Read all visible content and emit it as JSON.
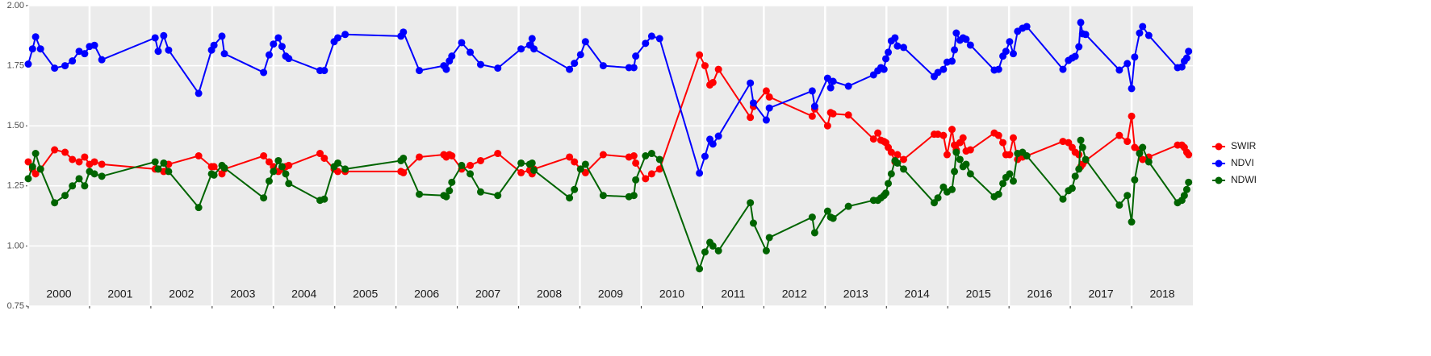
{
  "chart_data": {
    "type": "line",
    "x": [
      2000.0,
      2000.07,
      2000.12,
      2000.2,
      2000.43,
      2000.6,
      2000.72,
      2000.83,
      2000.92,
      2001.0,
      2001.08,
      2001.2,
      2002.07,
      2002.12,
      2002.21,
      2002.29,
      2002.78,
      2002.99,
      2003.03,
      2003.16,
      2003.2,
      2003.84,
      2003.93,
      2004.0,
      2004.08,
      2004.14,
      2004.2,
      2004.25,
      2004.76,
      2004.83,
      2004.99,
      2005.05,
      2005.17,
      2006.08,
      2006.12,
      2006.38,
      2006.78,
      2006.82,
      2006.87,
      2006.91,
      2007.07,
      2007.21,
      2007.38,
      2007.66,
      2008.04,
      2008.18,
      2008.22,
      2008.25,
      2008.83,
      2008.91,
      2009.01,
      2009.09,
      2009.38,
      2009.8,
      2009.88,
      2009.91,
      2010.07,
      2010.17,
      2010.3,
      2010.95,
      2011.04,
      2011.12,
      2011.17,
      2011.26,
      2011.78,
      2011.83,
      2012.04,
      2012.09,
      2012.79,
      2012.83,
      2013.04,
      2013.09,
      2013.13,
      2013.38,
      2013.79,
      2013.86,
      2013.91,
      2013.96,
      2013.99,
      2014.03,
      2014.08,
      2014.14,
      2014.18,
      2014.28,
      2014.78,
      2014.84,
      2014.93,
      2014.99,
      2015.07,
      2015.11,
      2015.14,
      2015.2,
      2015.25,
      2015.3,
      2015.37,
      2015.76,
      2015.83,
      2015.9,
      2015.95,
      2016.01,
      2016.07,
      2016.14,
      2016.22,
      2016.29,
      2016.88,
      2016.97,
      2017.03,
      2017.08,
      2017.14,
      2017.17,
      2017.2,
      2017.25,
      2017.8,
      2017.93,
      2018.0,
      2018.05,
      2018.13,
      2018.18,
      2018.28,
      2018.75,
      2018.82,
      2018.86,
      2018.9,
      2018.93
    ],
    "series": [
      {
        "name": "SWIR",
        "color": "#ff0000",
        "values": [
          1.35,
          1.32,
          1.3,
          1.32,
          1.4,
          1.39,
          1.36,
          1.35,
          1.37,
          1.34,
          1.35,
          1.34,
          1.32,
          1.32,
          1.31,
          1.34,
          1.375,
          1.33,
          1.33,
          1.3,
          1.32,
          1.375,
          1.35,
          1.33,
          1.31,
          1.32,
          1.33,
          1.335,
          1.385,
          1.365,
          1.32,
          1.31,
          1.31,
          1.31,
          1.305,
          1.37,
          1.38,
          1.37,
          1.38,
          1.375,
          1.32,
          1.335,
          1.355,
          1.385,
          1.305,
          1.315,
          1.3,
          1.32,
          1.37,
          1.35,
          1.32,
          1.305,
          1.38,
          1.37,
          1.375,
          1.345,
          1.28,
          1.3,
          1.32,
          1.795,
          1.75,
          1.67,
          1.68,
          1.735,
          1.535,
          1.58,
          1.645,
          1.62,
          1.54,
          1.57,
          1.5,
          1.555,
          1.55,
          1.545,
          1.445,
          1.47,
          1.44,
          1.435,
          1.43,
          1.41,
          1.39,
          1.35,
          1.38,
          1.36,
          1.465,
          1.465,
          1.46,
          1.38,
          1.485,
          1.42,
          1.4,
          1.43,
          1.45,
          1.395,
          1.4,
          1.47,
          1.46,
          1.43,
          1.38,
          1.38,
          1.45,
          1.36,
          1.37,
          1.375,
          1.435,
          1.43,
          1.41,
          1.39,
          1.38,
          1.33,
          1.34,
          1.355,
          1.46,
          1.435,
          1.54,
          1.41,
          1.4,
          1.36,
          1.37,
          1.42,
          1.42,
          1.41,
          1.39,
          1.38
        ]
      },
      {
        "name": "NDVI",
        "color": "#0000ff",
        "values": [
          1.757,
          1.82,
          1.87,
          1.82,
          1.74,
          1.75,
          1.77,
          1.81,
          1.8,
          1.83,
          1.835,
          1.775,
          1.866,
          1.81,
          1.875,
          1.815,
          1.635,
          1.815,
          1.835,
          1.873,
          1.8,
          1.722,
          1.795,
          1.84,
          1.866,
          1.83,
          1.79,
          1.78,
          1.73,
          1.73,
          1.85,
          1.866,
          1.88,
          1.873,
          1.89,
          1.73,
          1.75,
          1.735,
          1.77,
          1.79,
          1.846,
          1.806,
          1.755,
          1.74,
          1.82,
          1.836,
          1.863,
          1.82,
          1.735,
          1.76,
          1.796,
          1.85,
          1.75,
          1.742,
          1.742,
          1.79,
          1.843,
          1.873,
          1.863,
          1.303,
          1.373,
          1.444,
          1.424,
          1.457,
          1.678,
          1.595,
          1.524,
          1.574,
          1.645,
          1.581,
          1.698,
          1.658,
          1.685,
          1.665,
          1.712,
          1.729,
          1.742,
          1.735,
          1.779,
          1.806,
          1.853,
          1.866,
          1.832,
          1.826,
          1.705,
          1.722,
          1.735,
          1.765,
          1.769,
          1.816,
          1.886,
          1.856,
          1.866,
          1.86,
          1.836,
          1.732,
          1.735,
          1.79,
          1.81,
          1.85,
          1.8,
          1.893,
          1.906,
          1.913,
          1.735,
          1.772,
          1.782,
          1.789,
          1.829,
          1.93,
          1.883,
          1.88,
          1.732,
          1.759,
          1.655,
          1.786,
          1.886,
          1.913,
          1.876,
          1.742,
          1.745,
          1.769,
          1.782,
          1.81
        ]
      },
      {
        "name": "NDWI",
        "color": "#006400",
        "values": [
          1.28,
          1.33,
          1.385,
          1.32,
          1.18,
          1.21,
          1.25,
          1.28,
          1.25,
          1.31,
          1.3,
          1.29,
          1.35,
          1.32,
          1.345,
          1.31,
          1.16,
          1.3,
          1.295,
          1.335,
          1.325,
          1.2,
          1.27,
          1.31,
          1.355,
          1.33,
          1.3,
          1.26,
          1.19,
          1.195,
          1.33,
          1.345,
          1.32,
          1.355,
          1.365,
          1.215,
          1.21,
          1.205,
          1.23,
          1.265,
          1.335,
          1.3,
          1.225,
          1.21,
          1.345,
          1.34,
          1.345,
          1.315,
          1.2,
          1.235,
          1.32,
          1.34,
          1.21,
          1.205,
          1.21,
          1.275,
          1.375,
          1.385,
          1.36,
          0.905,
          0.975,
          1.015,
          1.0,
          0.98,
          1.18,
          1.095,
          0.98,
          1.035,
          1.12,
          1.055,
          1.145,
          1.12,
          1.115,
          1.165,
          1.19,
          1.19,
          1.2,
          1.21,
          1.22,
          1.26,
          1.3,
          1.355,
          1.345,
          1.32,
          1.18,
          1.2,
          1.245,
          1.225,
          1.235,
          1.31,
          1.39,
          1.36,
          1.33,
          1.34,
          1.3,
          1.205,
          1.215,
          1.26,
          1.285,
          1.3,
          1.27,
          1.385,
          1.39,
          1.375,
          1.195,
          1.23,
          1.24,
          1.29,
          1.32,
          1.44,
          1.41,
          1.36,
          1.17,
          1.21,
          1.1,
          1.275,
          1.385,
          1.41,
          1.35,
          1.18,
          1.19,
          1.21,
          1.235,
          1.265
        ]
      }
    ],
    "xlim": [
      2000,
      2019
    ],
    "xticks": [
      {
        "value": 2000.5,
        "label": "2000"
      },
      {
        "value": 2001.5,
        "label": "2001"
      },
      {
        "value": 2002.5,
        "label": "2002"
      },
      {
        "value": 2003.5,
        "label": "2003"
      },
      {
        "value": 2004.5,
        "label": "2004"
      },
      {
        "value": 2005.5,
        "label": "2005"
      },
      {
        "value": 2006.5,
        "label": "2006"
      },
      {
        "value": 2007.5,
        "label": "2007"
      },
      {
        "value": 2008.5,
        "label": "2008"
      },
      {
        "value": 2009.5,
        "label": "2009"
      },
      {
        "value": 2010.5,
        "label": "2010"
      },
      {
        "value": 2011.5,
        "label": "2011"
      },
      {
        "value": 2012.5,
        "label": "2012"
      },
      {
        "value": 2013.5,
        "label": "2013"
      },
      {
        "value": 2014.5,
        "label": "2014"
      },
      {
        "value": 2015.5,
        "label": "2015"
      },
      {
        "value": 2016.5,
        "label": "2016"
      },
      {
        "value": 2017.5,
        "label": "2017"
      },
      {
        "value": 2018.5,
        "label": "2018"
      }
    ],
    "ylim": [
      0.75,
      2.0
    ],
    "yticks": [
      0.75,
      {
        "value": 1.0,
        "label": "1.00"
      },
      1.25,
      {
        "value": 1.5,
        "label": "1.50"
      },
      1.75,
      {
        "value": 2.0,
        "label": "2.00"
      }
    ],
    "grid": true,
    "legend": "right"
  }
}
